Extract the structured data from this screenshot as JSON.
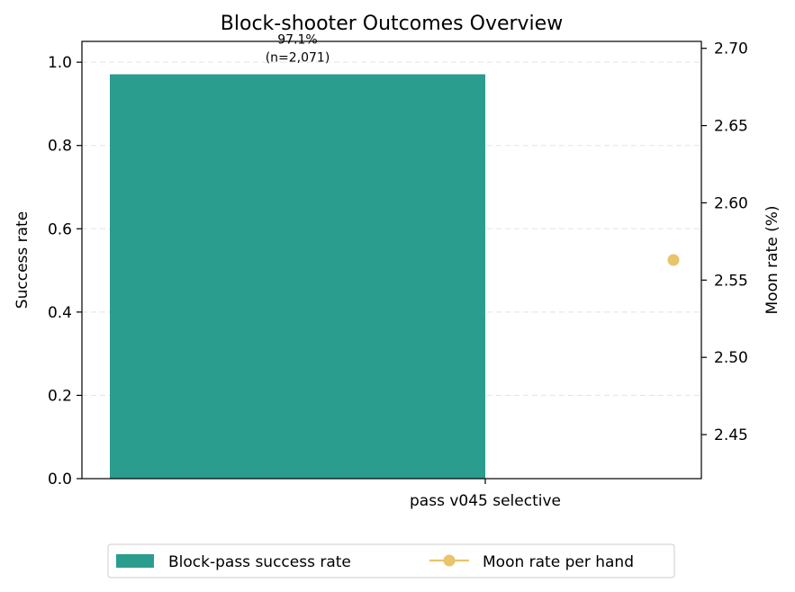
{
  "chart_data": {
    "type": "bar",
    "title": "Block-shooter Outcomes Overview",
    "categories": [
      "pass v045 selective"
    ],
    "series": [
      {
        "name": "Block-pass success rate",
        "type": "bar",
        "axis": "left",
        "values": [
          0.971
        ],
        "labels": [
          [
            "97.1%",
            "(n=2,071)"
          ]
        ],
        "color": "#2a9d8f"
      },
      {
        "name": "Moon rate per hand",
        "type": "line",
        "axis": "right",
        "values": [
          2.563
        ],
        "color": "#e9c46a"
      }
    ],
    "ylabel": "Success rate",
    "ylim": [
      0,
      1.05
    ],
    "yticks": [
      "0.0",
      "0.2",
      "0.4",
      "0.6",
      "0.8",
      "1.0"
    ],
    "y2label": "Moon rate (%)",
    "y2lim": [
      2.4215,
      2.7045
    ],
    "y2ticks": [
      "2.45",
      "2.50",
      "2.55",
      "2.60",
      "2.65",
      "2.70"
    ],
    "grid": "horizontal dashed",
    "legend_position": "bottom-center"
  }
}
